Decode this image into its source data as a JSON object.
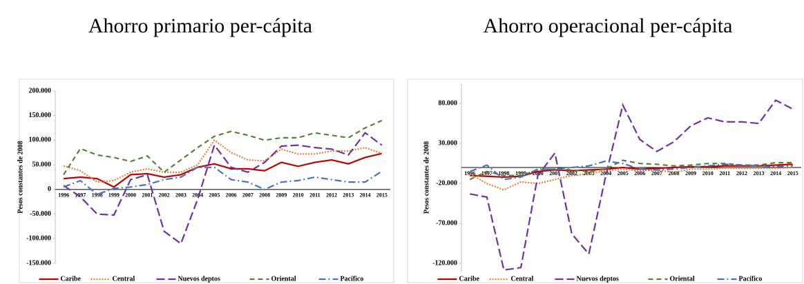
{
  "chart_data": [
    {
      "type": "line",
      "title": "Ahorro primario per-cápita",
      "y_label": "Pesos constantes de 2008",
      "categories": [
        "1996",
        "1997",
        "1998",
        "1999",
        "2000",
        "2001",
        "2002",
        "2003",
        "2004",
        "2005",
        "2006",
        "2007",
        "2008",
        "2009",
        "2010",
        "2011",
        "2012",
        "2013",
        "2014",
        "2015"
      ],
      "ylim": [
        -150000,
        200000
      ],
      "yticks": [
        {
          "value": -150000,
          "label": "-150.000"
        },
        {
          "value": -100000,
          "label": "-100.000"
        },
        {
          "value": -50000,
          "label": "-50.000"
        },
        0,
        {
          "value": 50000,
          "label": "50.000"
        },
        {
          "value": 100000,
          "label": "100.000"
        },
        {
          "value": 150000,
          "label": "150.000"
        },
        {
          "value": 200000,
          "label": "200.000"
        }
      ],
      "series": [
        {
          "name": "Caribe",
          "color": "#c00000",
          "dash": "solid",
          "values": [
            22000,
            25000,
            22000,
            5000,
            30000,
            32000,
            25000,
            30000,
            45000,
            52000,
            42000,
            42000,
            38000,
            55000,
            47000,
            55000,
            60000,
            52000,
            65000,
            73000
          ]
        },
        {
          "name": "Central",
          "color": "#ed7d31",
          "dash": "dotted",
          "values": [
            48000,
            38000,
            15000,
            18000,
            35000,
            42000,
            35000,
            35000,
            50000,
            100000,
            75000,
            60000,
            58000,
            82000,
            72000,
            72000,
            78000,
            78000,
            85000,
            73000
          ]
        },
        {
          "name": "Nuevos deptos",
          "color": "#7030a0",
          "dash": "long-dash",
          "values": [
            8000,
            -15000,
            -50000,
            -52000,
            20000,
            30000,
            -85000,
            -110000,
            -20000,
            90000,
            45000,
            35000,
            55000,
            88000,
            90000,
            85000,
            82000,
            70000,
            115000,
            90000
          ]
        },
        {
          "name": "Oriental",
          "color": "#548235",
          "dash": "dash",
          "values": [
            30000,
            83000,
            70000,
            65000,
            57000,
            68000,
            35000,
            60000,
            85000,
            108000,
            118000,
            110000,
            100000,
            105000,
            105000,
            115000,
            110000,
            105000,
            125000,
            140000
          ]
        },
        {
          "name": "Pacífico",
          "color": "#4472c4",
          "dash": "dash-dot",
          "values": [
            5000,
            18000,
            -10000,
            2000,
            5000,
            10000,
            20000,
            25000,
            45000,
            45000,
            20000,
            15000,
            0,
            15000,
            18000,
            25000,
            20000,
            15000,
            15000,
            37000
          ]
        }
      ]
    },
    {
      "type": "line",
      "title": "Ahorro operacional per-cápita",
      "y_label": "Pesos constantes de 2008",
      "categories": [
        "1996",
        "1997",
        "1998",
        "1999",
        "2000",
        "2001",
        "2002",
        "2003",
        "2004",
        "2005",
        "2006",
        "2007",
        "2008",
        "2009",
        "2010",
        "2011",
        "2012",
        "2013",
        "2014",
        "2015"
      ],
      "ylim": [
        -130000,
        105000
      ],
      "yticks": [
        {
          "value": -120000,
          "label": "-120.000"
        },
        {
          "value": -70000,
          "label": "-70.000"
        },
        {
          "value": -20000,
          "label": "-20.000"
        },
        {
          "value": 30000,
          "label": "30.000"
        },
        {
          "value": 80000,
          "label": "80.000"
        }
      ],
      "series": [
        {
          "name": "Caribe",
          "color": "#c00000",
          "dash": "solid",
          "values": [
            -10000,
            -11000,
            -12000,
            -11000,
            -5000,
            -3000,
            -4000,
            -3000,
            -2000,
            0,
            -2000,
            -1000,
            0,
            1000,
            1000,
            2000,
            2000,
            2000,
            3000,
            4000
          ]
        },
        {
          "name": "Central",
          "color": "#ed7d31",
          "dash": "dotted",
          "values": [
            -8000,
            -20000,
            -28000,
            -18000,
            -20000,
            -15000,
            -10000,
            -8000,
            -4000,
            -2000,
            -4000,
            -3000,
            -6000,
            -2000,
            -2000,
            -1000,
            -1000,
            -1000,
            -1000,
            0
          ]
        },
        {
          "name": "Nuevos deptos",
          "color": "#7030a0",
          "dash": "long-dash",
          "values": [
            -33000,
            -37000,
            -128000,
            -125000,
            -10000,
            18000,
            -83000,
            -108000,
            -10000,
            78000,
            35000,
            20000,
            32000,
            52000,
            62000,
            57000,
            57000,
            55000,
            84000,
            73000
          ]
        },
        {
          "name": "Oriental",
          "color": "#548235",
          "dash": "dash",
          "values": [
            -15000,
            -5000,
            -10000,
            -10000,
            -3000,
            -2000,
            -3000,
            -5000,
            -2000,
            9000,
            5000,
            4000,
            2000,
            3000,
            5000,
            5000,
            3000,
            3000,
            6000,
            6000
          ]
        },
        {
          "name": "Pacífico",
          "color": "#4472c4",
          "dash": "dash-dot",
          "values": [
            -5000,
            3000,
            -15000,
            -12000,
            -2000,
            -2000,
            0,
            2000,
            8000,
            5000,
            -2000,
            -3000,
            -2000,
            0,
            2000,
            4000,
            3000,
            2000,
            1000,
            2000
          ]
        }
      ]
    }
  ]
}
